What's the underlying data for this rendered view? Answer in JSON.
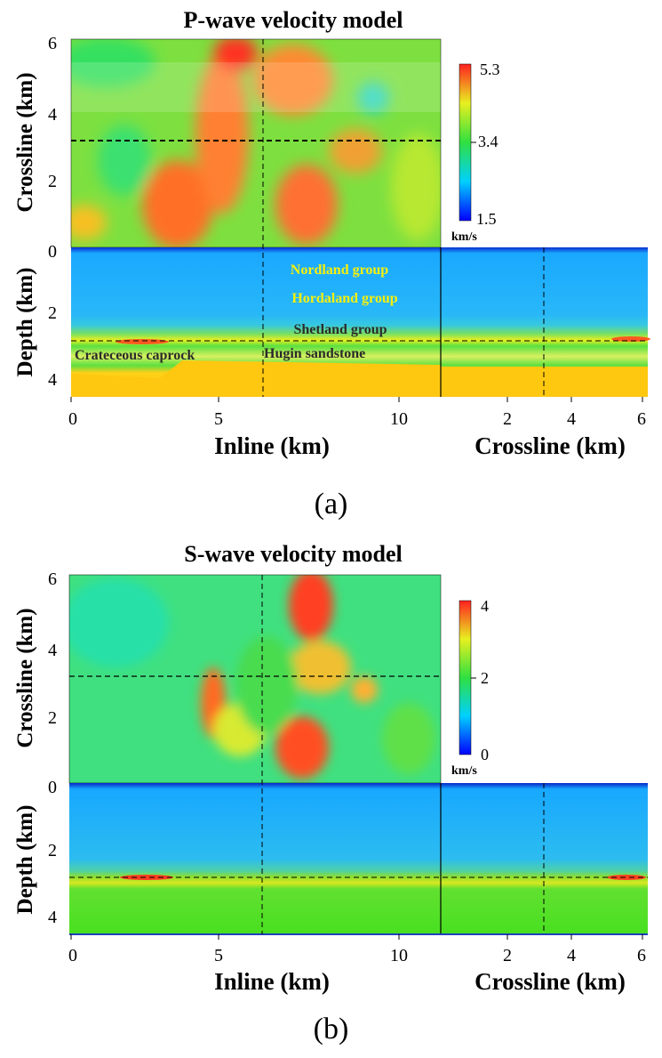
{
  "figures": [
    {
      "id": "a",
      "title": "P-wave velocity model",
      "caption": "(a)",
      "colorbar": {
        "max": "5.3",
        "mid": "3.4",
        "min": "1.5",
        "unit": "km/s"
      },
      "map_yaxis": {
        "label": "Crossline (km)",
        "ticks": [
          "6",
          "4",
          "2",
          "0"
        ]
      },
      "depth_yaxis": {
        "label": "Depth (km)",
        "ticks": [
          "0",
          "2",
          "4"
        ]
      },
      "inline_xaxis": {
        "label": "Inline (km)",
        "ticks": [
          "0",
          "5",
          "10"
        ]
      },
      "crossline_xaxis": {
        "label": "Crossline (km)",
        "ticks": [
          "2",
          "4",
          "6"
        ]
      },
      "annotations": [
        {
          "text": "Nordland group",
          "color": "#f7f00a"
        },
        {
          "text": "Hordaland group",
          "color": "#f7f00a"
        },
        {
          "text": "Shetland group",
          "color": "#2b2b2b"
        },
        {
          "text": "Crateceous caprock",
          "color": "#2b2b2b"
        },
        {
          "text": "Hugin sandstone",
          "color": "#2b2b2b"
        }
      ]
    },
    {
      "id": "b",
      "title": "S-wave velocity model",
      "caption": "(b)",
      "colorbar": {
        "max": "4",
        "mid": "2",
        "min": "0",
        "unit": "km/s"
      },
      "map_yaxis": {
        "label": "Crossline (km)",
        "ticks": [
          "6",
          "4",
          "2",
          "0"
        ]
      },
      "depth_yaxis": {
        "label": "Depth (km)",
        "ticks": [
          "0",
          "2",
          "4"
        ]
      },
      "inline_xaxis": {
        "label": "Inline (km)",
        "ticks": [
          "0",
          "5",
          "10"
        ]
      },
      "crossline_xaxis": {
        "label": "Crossline (km)",
        "ticks": [
          "2",
          "4",
          "6"
        ]
      },
      "annotations": []
    }
  ],
  "colors": {
    "colormap": [
      "#0000ff",
      "#00c8ff",
      "#20e070",
      "#4ee024",
      "#d8f020",
      "#ffb000",
      "#ff5a20",
      "#ff0000"
    ]
  }
}
